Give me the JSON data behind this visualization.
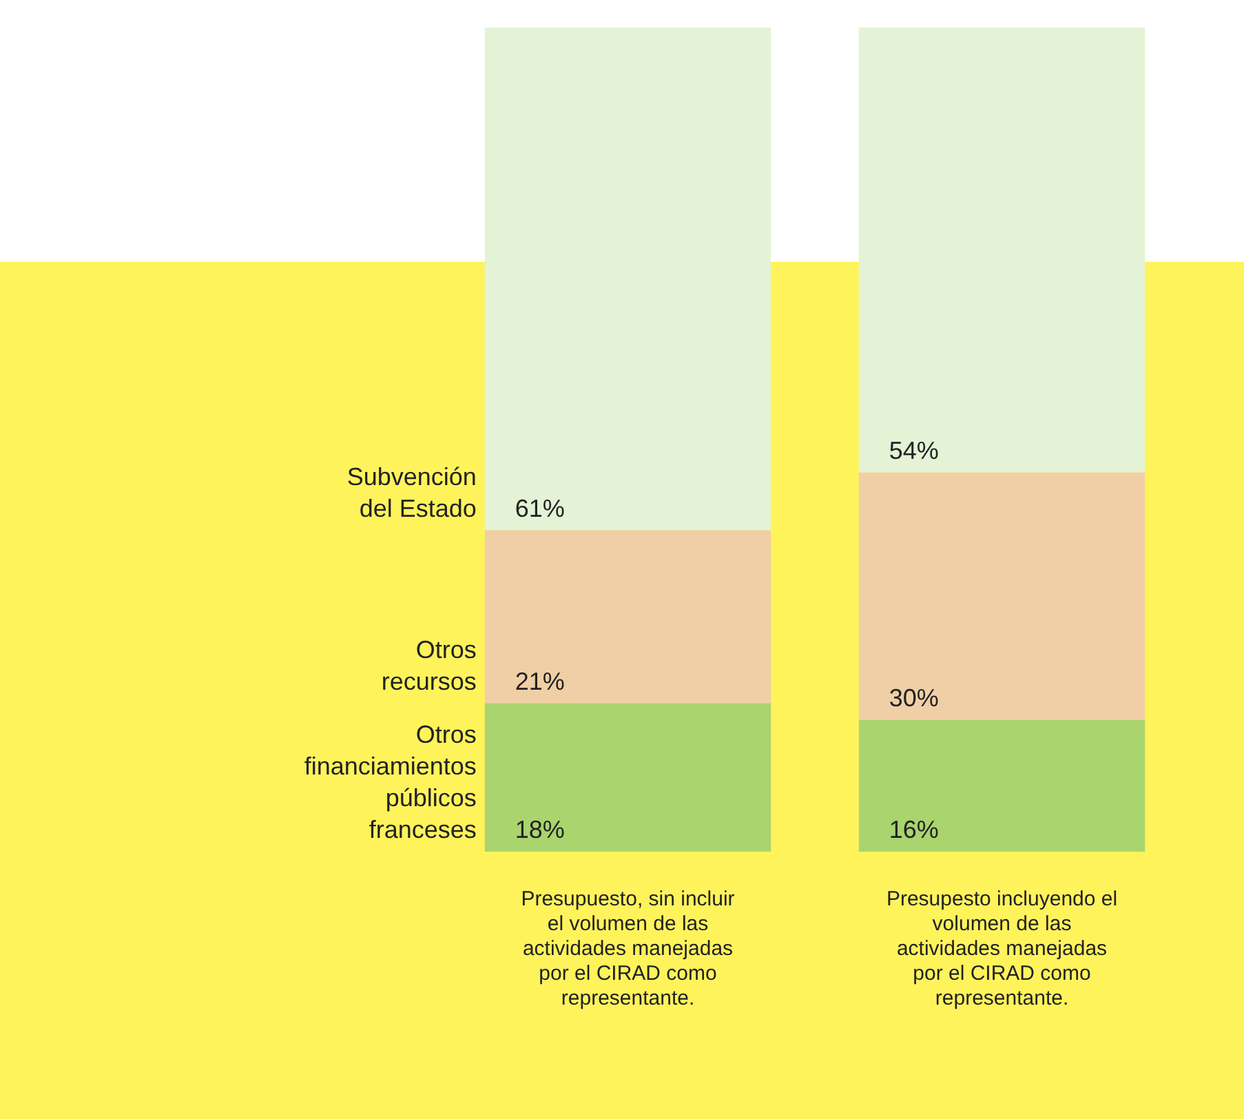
{
  "chart_data": {
    "type": "bar",
    "stacked": true,
    "legend": false,
    "categories": [
      "Presupuesto, sin incluir el volumen de las actividades manejadas por el CIRAD como representante.",
      "Presupesto incluyendo el volumen de las actividades manejadas por el CIRAD como representante."
    ],
    "series": [
      {
        "name": "Otros financiamientos públicos franceses",
        "color": "#a9d46e",
        "values": [
          18,
          16
        ],
        "value_labels": [
          "18%",
          "16%"
        ]
      },
      {
        "name": "Otros recursos",
        "color": "#f0cfa6",
        "values": [
          21,
          30
        ],
        "value_labels": [
          "21%",
          "30%"
        ]
      },
      {
        "name": "Subvención del Estado",
        "color": "#e4f3d6",
        "values": [
          61,
          54
        ],
        "value_labels": [
          "61%",
          "54%"
        ]
      }
    ]
  }
}
